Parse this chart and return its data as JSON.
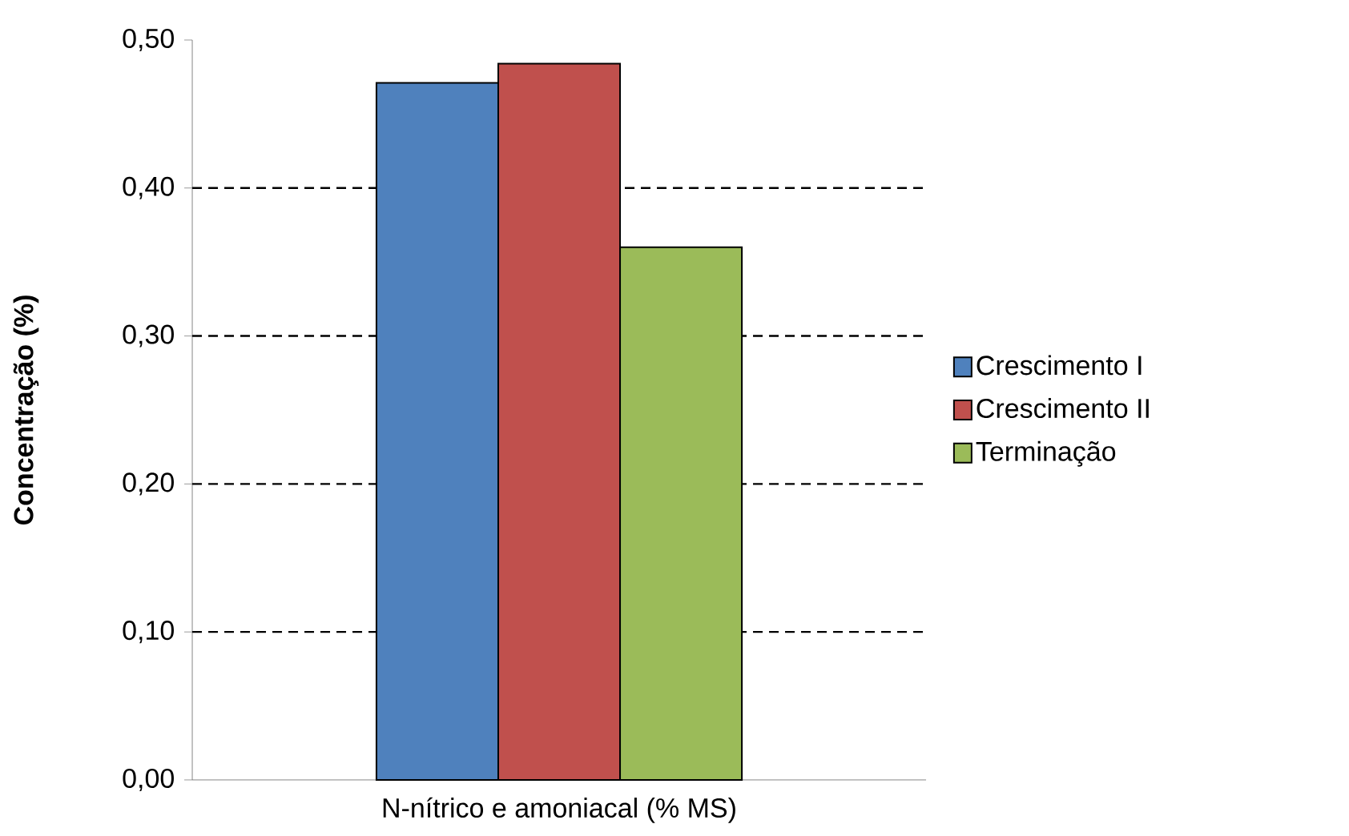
{
  "chart_data": {
    "type": "bar",
    "ylabel": "Concentração (%)",
    "categories": [
      "N-nítrico e amoniacal (% MS)"
    ],
    "series": [
      {
        "name": "Crescimento I",
        "color": "#4f81bd",
        "values": [
          0.471
        ]
      },
      {
        "name": "Crescimento II",
        "color": "#c0504d",
        "values": [
          0.484
        ]
      },
      {
        "name": "Terminação",
        "color": "#9bbb59",
        "values": [
          0.36
        ]
      }
    ],
    "ylim": [
      0,
      0.5
    ],
    "yticks": [
      {
        "value": 0,
        "label": "0,00"
      },
      {
        "value": 0.1,
        "label": "0,10"
      },
      {
        "value": 0.2,
        "label": "0,20"
      },
      {
        "value": 0.3,
        "label": "0,30"
      },
      {
        "value": 0.4,
        "label": "0,40"
      },
      {
        "value": 0.5,
        "label": "0,50"
      }
    ],
    "grid": "y",
    "legend": "right"
  }
}
